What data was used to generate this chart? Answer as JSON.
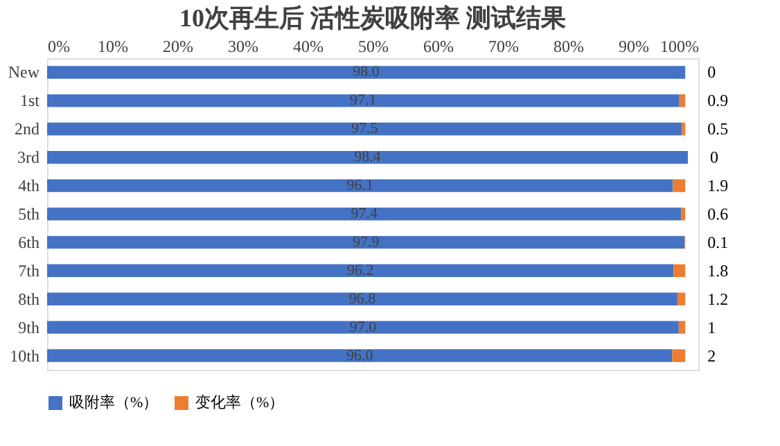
{
  "chart_data": {
    "type": "bar",
    "orientation": "horizontal",
    "stacked": true,
    "title": "10次再生后 活性炭吸附率 测试结果",
    "categories": [
      "New",
      "1st",
      "2nd",
      "3rd",
      "4th",
      "5th",
      "6th",
      "7th",
      "8th",
      "9th",
      "10th"
    ],
    "series": [
      {
        "name": "吸附率（%）",
        "color": "#4472c4",
        "values": [
          98.0,
          97.1,
          97.5,
          98.4,
          96.1,
          97.4,
          97.9,
          96.2,
          96.8,
          97.0,
          96.0
        ],
        "value_labels": [
          "98.0",
          "97.1",
          "97.5",
          "98.4",
          "96.1",
          "97.4",
          "97.9",
          "96.2",
          "96.8",
          "97.0",
          "96.0"
        ]
      },
      {
        "name": "变化率（%）",
        "color": "#ed7d31",
        "values": [
          0,
          0.9,
          0.5,
          0,
          1.9,
          0.6,
          0.1,
          1.8,
          1.2,
          1,
          2
        ],
        "value_labels": [
          "0",
          "0.9",
          "0.5",
          "0",
          "1.9",
          "0.6",
          "0.1",
          "1.8",
          "1.2",
          "1",
          "2"
        ]
      }
    ],
    "xlim": [
      0,
      100
    ],
    "xticks": [
      {
        "value": 0,
        "label": "0%"
      },
      {
        "value": 10,
        "label": "10%"
      },
      {
        "value": 20,
        "label": "20%"
      },
      {
        "value": 30,
        "label": "30%"
      },
      {
        "value": 40,
        "label": "40%"
      },
      {
        "value": 50,
        "label": "50%"
      },
      {
        "value": 60,
        "label": "60%"
      },
      {
        "value": 70,
        "label": "70%"
      },
      {
        "value": 80,
        "label": "80%"
      },
      {
        "value": 90,
        "label": "90%"
      },
      {
        "value": 100,
        "label": "100%"
      }
    ],
    "grid": false,
    "legend": "bottom"
  }
}
